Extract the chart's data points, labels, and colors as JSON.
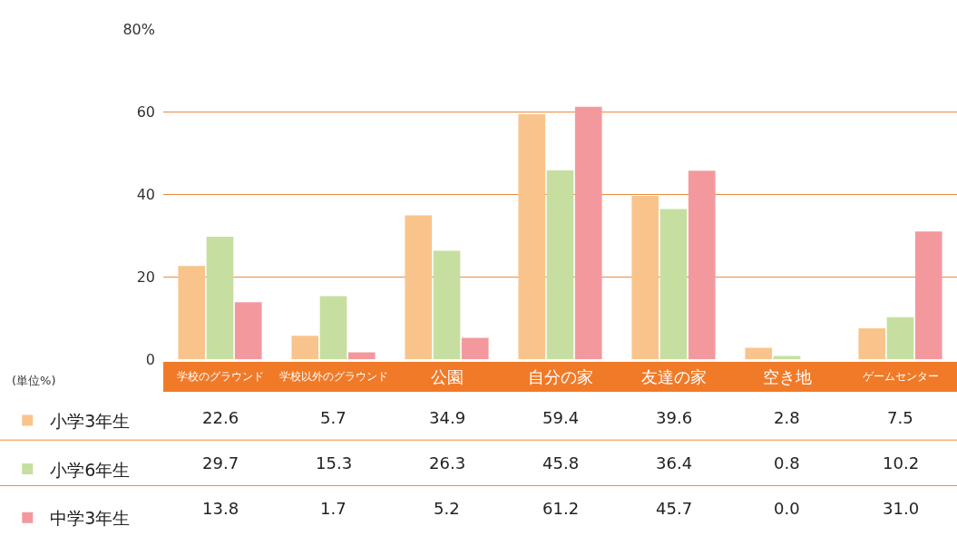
{
  "chart_data": {
    "type": "bar",
    "categories": [
      "学校のグラウンド",
      "学校以外のグラウンド",
      "公園",
      "自分の家",
      "友達の家",
      "空き地",
      "ゲームセンター"
    ],
    "series": [
      {
        "name": "小学3年生",
        "color": "#f9c48c",
        "values": [
          22.6,
          5.7,
          34.9,
          59.4,
          39.6,
          2.8,
          7.5
        ],
        "value_labels": [
          "22.6",
          "5.7",
          "34.9",
          "59.4",
          "39.6",
          "2.8",
          "7.5"
        ]
      },
      {
        "name": "小学6年生",
        "color": "#c6dfa0",
        "values": [
          29.7,
          15.3,
          26.3,
          45.8,
          36.4,
          0.8,
          10.2
        ],
        "value_labels": [
          "29.7",
          "15.3",
          "26.3",
          "45.8",
          "36.4",
          "0.8",
          "10.2"
        ]
      },
      {
        "name": "中学3年生",
        "color": "#f3999e",
        "values": [
          13.8,
          1.7,
          5.2,
          61.2,
          45.7,
          0.0,
          31.0
        ],
        "value_labels": [
          "13.8",
          "1.7",
          "5.2",
          "61.2",
          "45.7",
          "0.0",
          "31.0"
        ]
      }
    ],
    "ylim": [
      0,
      80
    ],
    "yticks": [
      0,
      20,
      40,
      60,
      {
        "value": 80,
        "label": "80%"
      }
    ],
    "grid": "y",
    "legend": "bottom left",
    "annotations": [
      "(単位%)"
    ]
  }
}
